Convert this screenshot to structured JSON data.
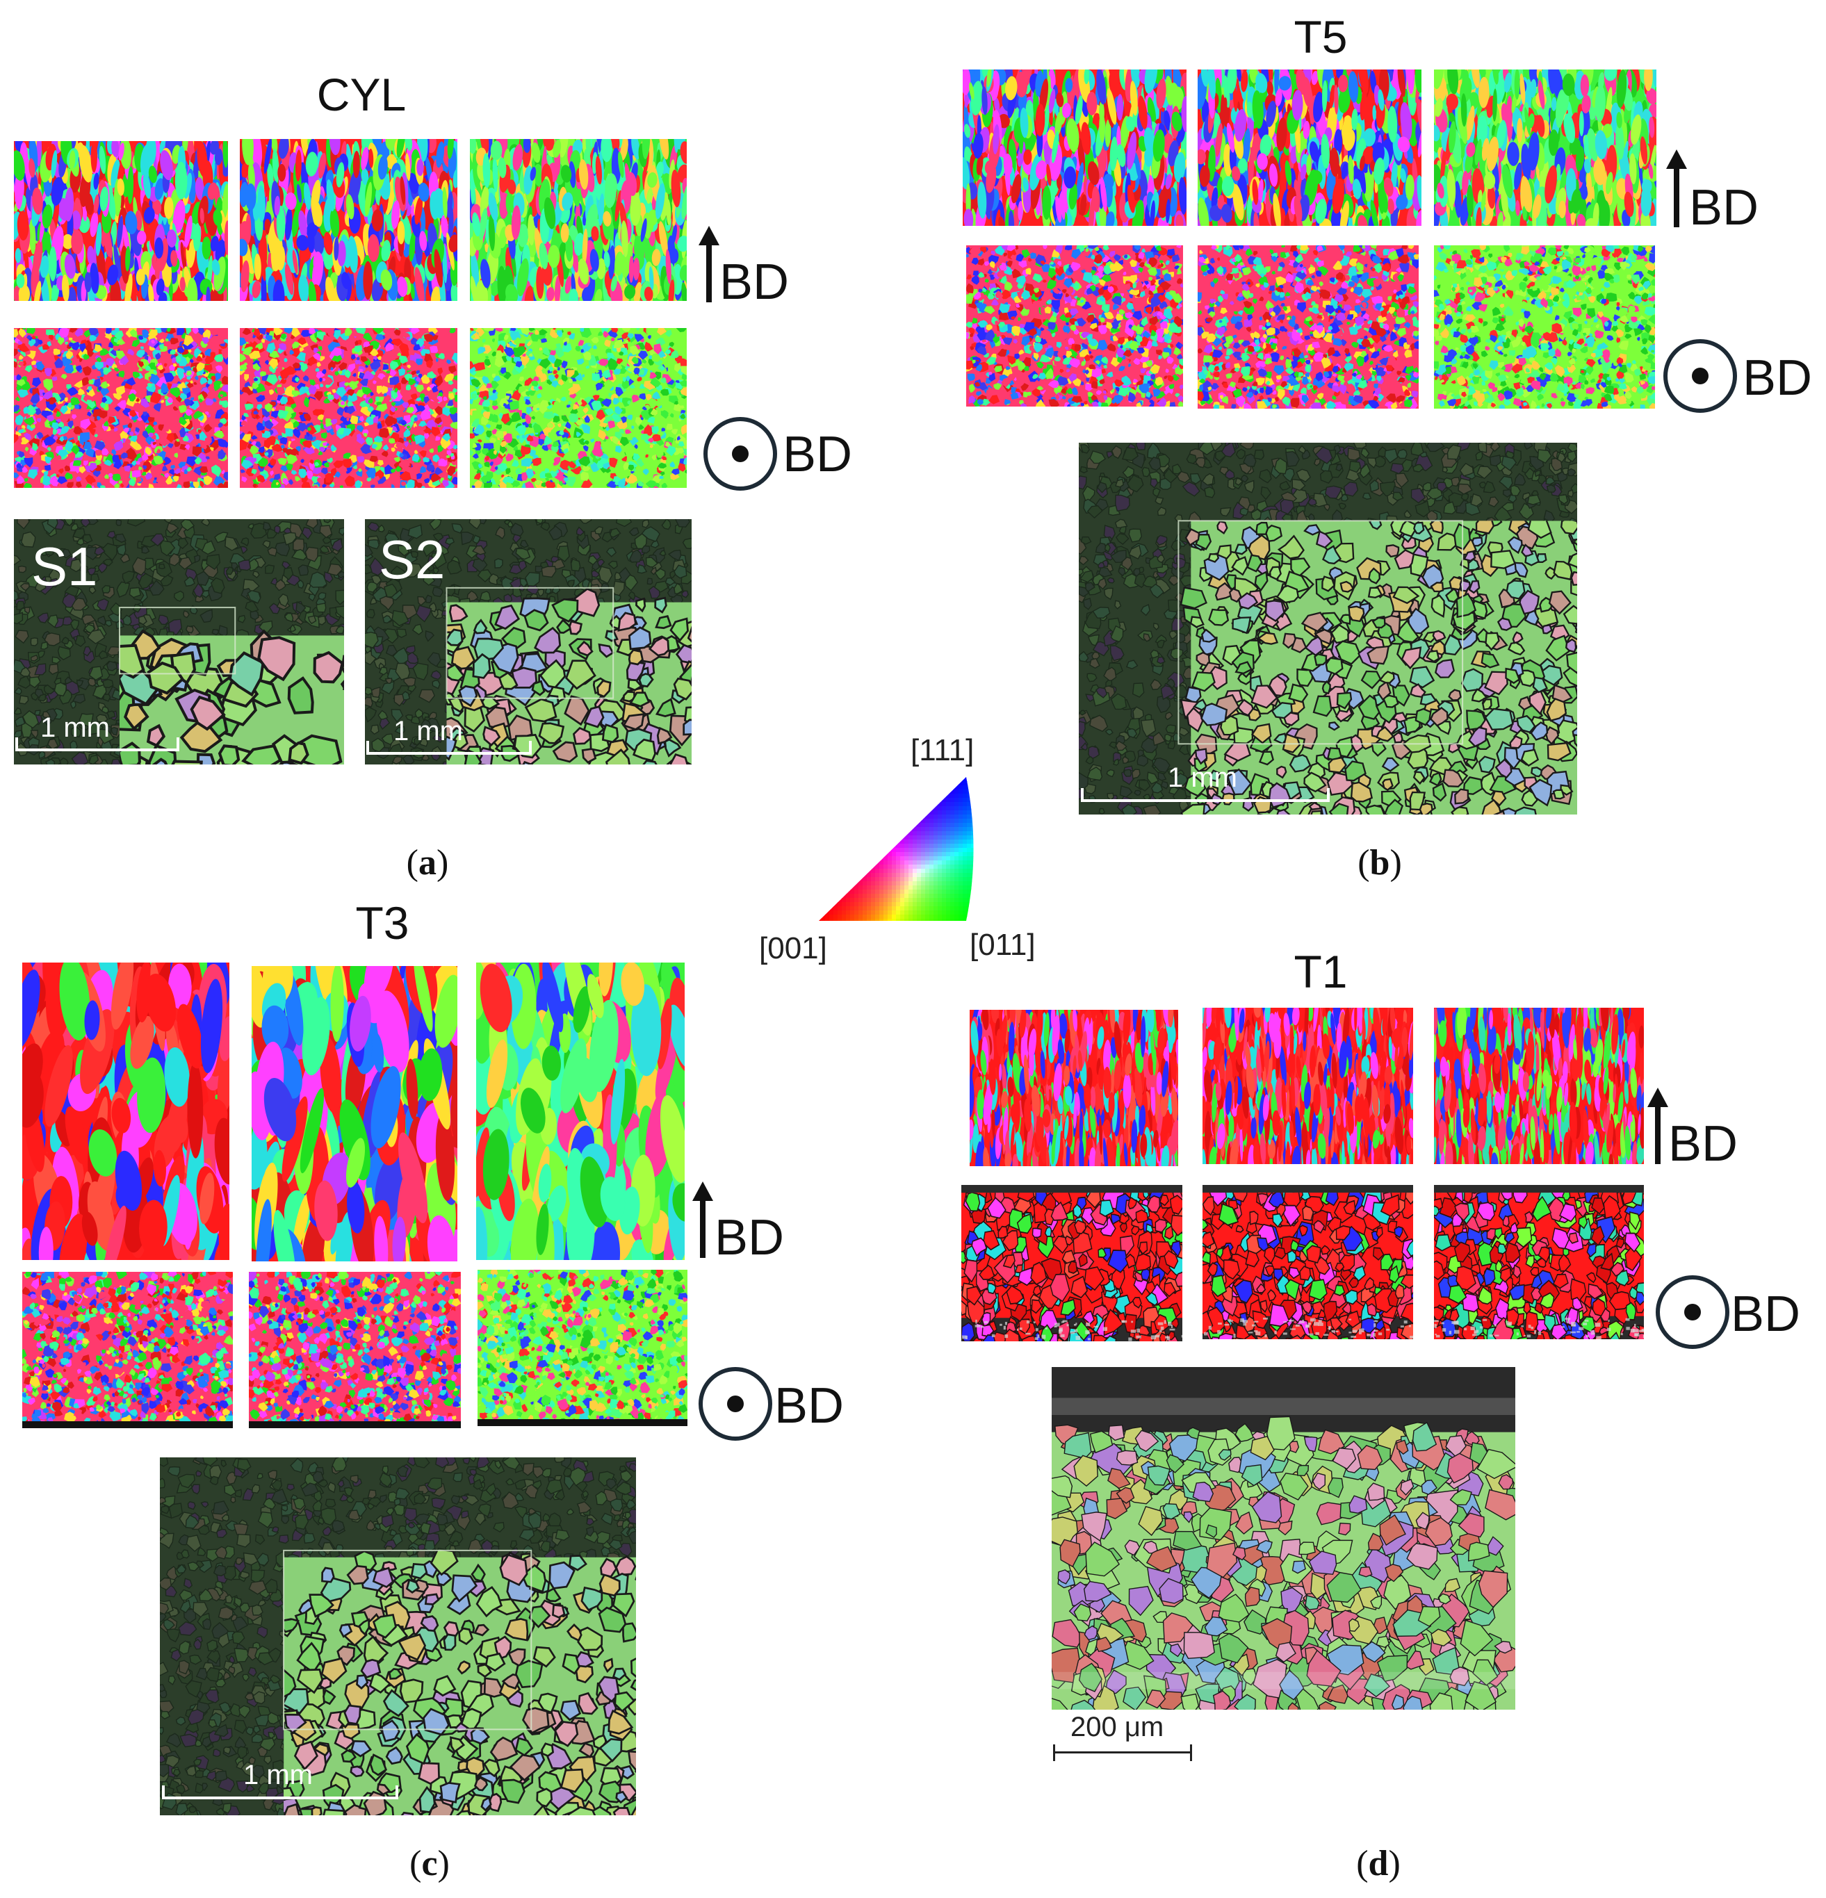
{
  "panel_a": {
    "title": "CYL",
    "caption_letter": "a",
    "overview_labels": [
      "S1",
      "S2"
    ],
    "scale_labels": [
      "1 mm",
      "1 mm"
    ],
    "bd_vertical": "BD",
    "bd_normal": "BD"
  },
  "panel_b": {
    "title": "T5",
    "caption_letter": "b",
    "scale_label": "1 mm",
    "bd_vertical": "BD",
    "bd_normal": "BD"
  },
  "panel_c": {
    "title": "T3",
    "caption_letter": "c",
    "scale_label": "1 mm",
    "bd_vertical": "BD",
    "bd_normal": "BD"
  },
  "panel_d": {
    "title": "T1",
    "caption_letter": "d",
    "scale_label": "200 μm",
    "bd_vertical": "BD",
    "bd_normal": "BD"
  },
  "ipf_legend": {
    "corner_top": "[111]",
    "corner_left": "[001]",
    "corner_right": "[011]",
    "colors": {
      "c001": "#ff0000",
      "c011": "#00ff00",
      "c111": "#0000ff"
    }
  }
}
